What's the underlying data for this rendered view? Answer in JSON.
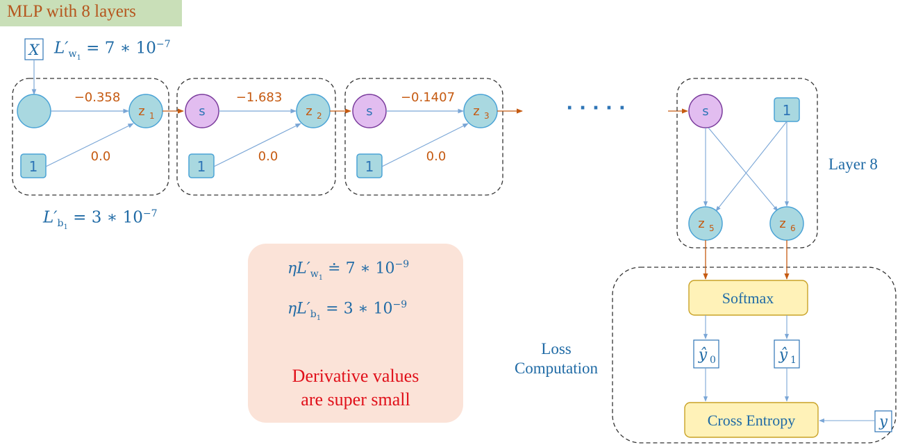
{
  "title": "MLP with 8 layers",
  "inputs": {
    "x": "X",
    "y": "y"
  },
  "gradients": {
    "w1_symbol": "L′",
    "w1_sub": "w",
    "w1_subsub": "1",
    "w1_value": "= 7 ∗ 10",
    "w1_exp": "−7",
    "b1_symbol": "L′",
    "b1_sub": "b",
    "b1_subsub": "1",
    "b1_value": "= 3 ∗ 10",
    "b1_exp": "−7"
  },
  "layers": [
    {
      "weight": "−0.358",
      "bias": "0.0",
      "in_node": "",
      "out_node": "z",
      "out_sub": "1",
      "bias_node": "1"
    },
    {
      "weight": "−1.683",
      "bias": "0.0",
      "in_node": "s",
      "out_node": "z",
      "out_sub": "2",
      "bias_node": "1"
    },
    {
      "weight": "−0.1407",
      "bias": "0.0",
      "in_node": "s",
      "out_node": "z",
      "out_sub": "3",
      "bias_node": "1"
    }
  ],
  "ellipsis": "· · · · ·",
  "last_layer": {
    "label": "Layer 8",
    "in_node": "s",
    "bias_node": "1",
    "out_a": "z",
    "out_a_sub": "5",
    "out_b": "z",
    "out_b_sub": "6"
  },
  "loss": {
    "label_line1": "Loss",
    "label_line2": "Computation",
    "softmax": "Softmax",
    "y0": "ŷ",
    "y0_sub": "0",
    "y1": "ŷ",
    "y1_sub": "1",
    "cross_entropy": "Cross Entropy"
  },
  "callout": {
    "lr_w": "ηL′",
    "lr_w_sub": "w",
    "lr_w_subsub": "1",
    "lr_w_value": "≐ 7 ∗ 10",
    "lr_w_exp": "−9",
    "lr_b": "ηL′",
    "lr_b_sub": "b",
    "lr_b_subsub": "1",
    "lr_b_value": "= 3 ∗ 10",
    "lr_b_exp": "−9",
    "warning_line1": "Derivative values",
    "warning_line2": "are super small"
  },
  "colors": {
    "node_fill": "#a9d8e0",
    "node_stroke": "#4aa3d6",
    "sigmoid_fill": "#e2bdf0",
    "sigmoid_stroke": "#7a3b9c",
    "box_fill": "#fff2b8",
    "box_stroke": "#c9a227",
    "arrow_orange": "#c55a11",
    "arrow_blue": "#7aa6d6",
    "text_blue": "#1f6aa5",
    "text_red": "#e0101a"
  }
}
